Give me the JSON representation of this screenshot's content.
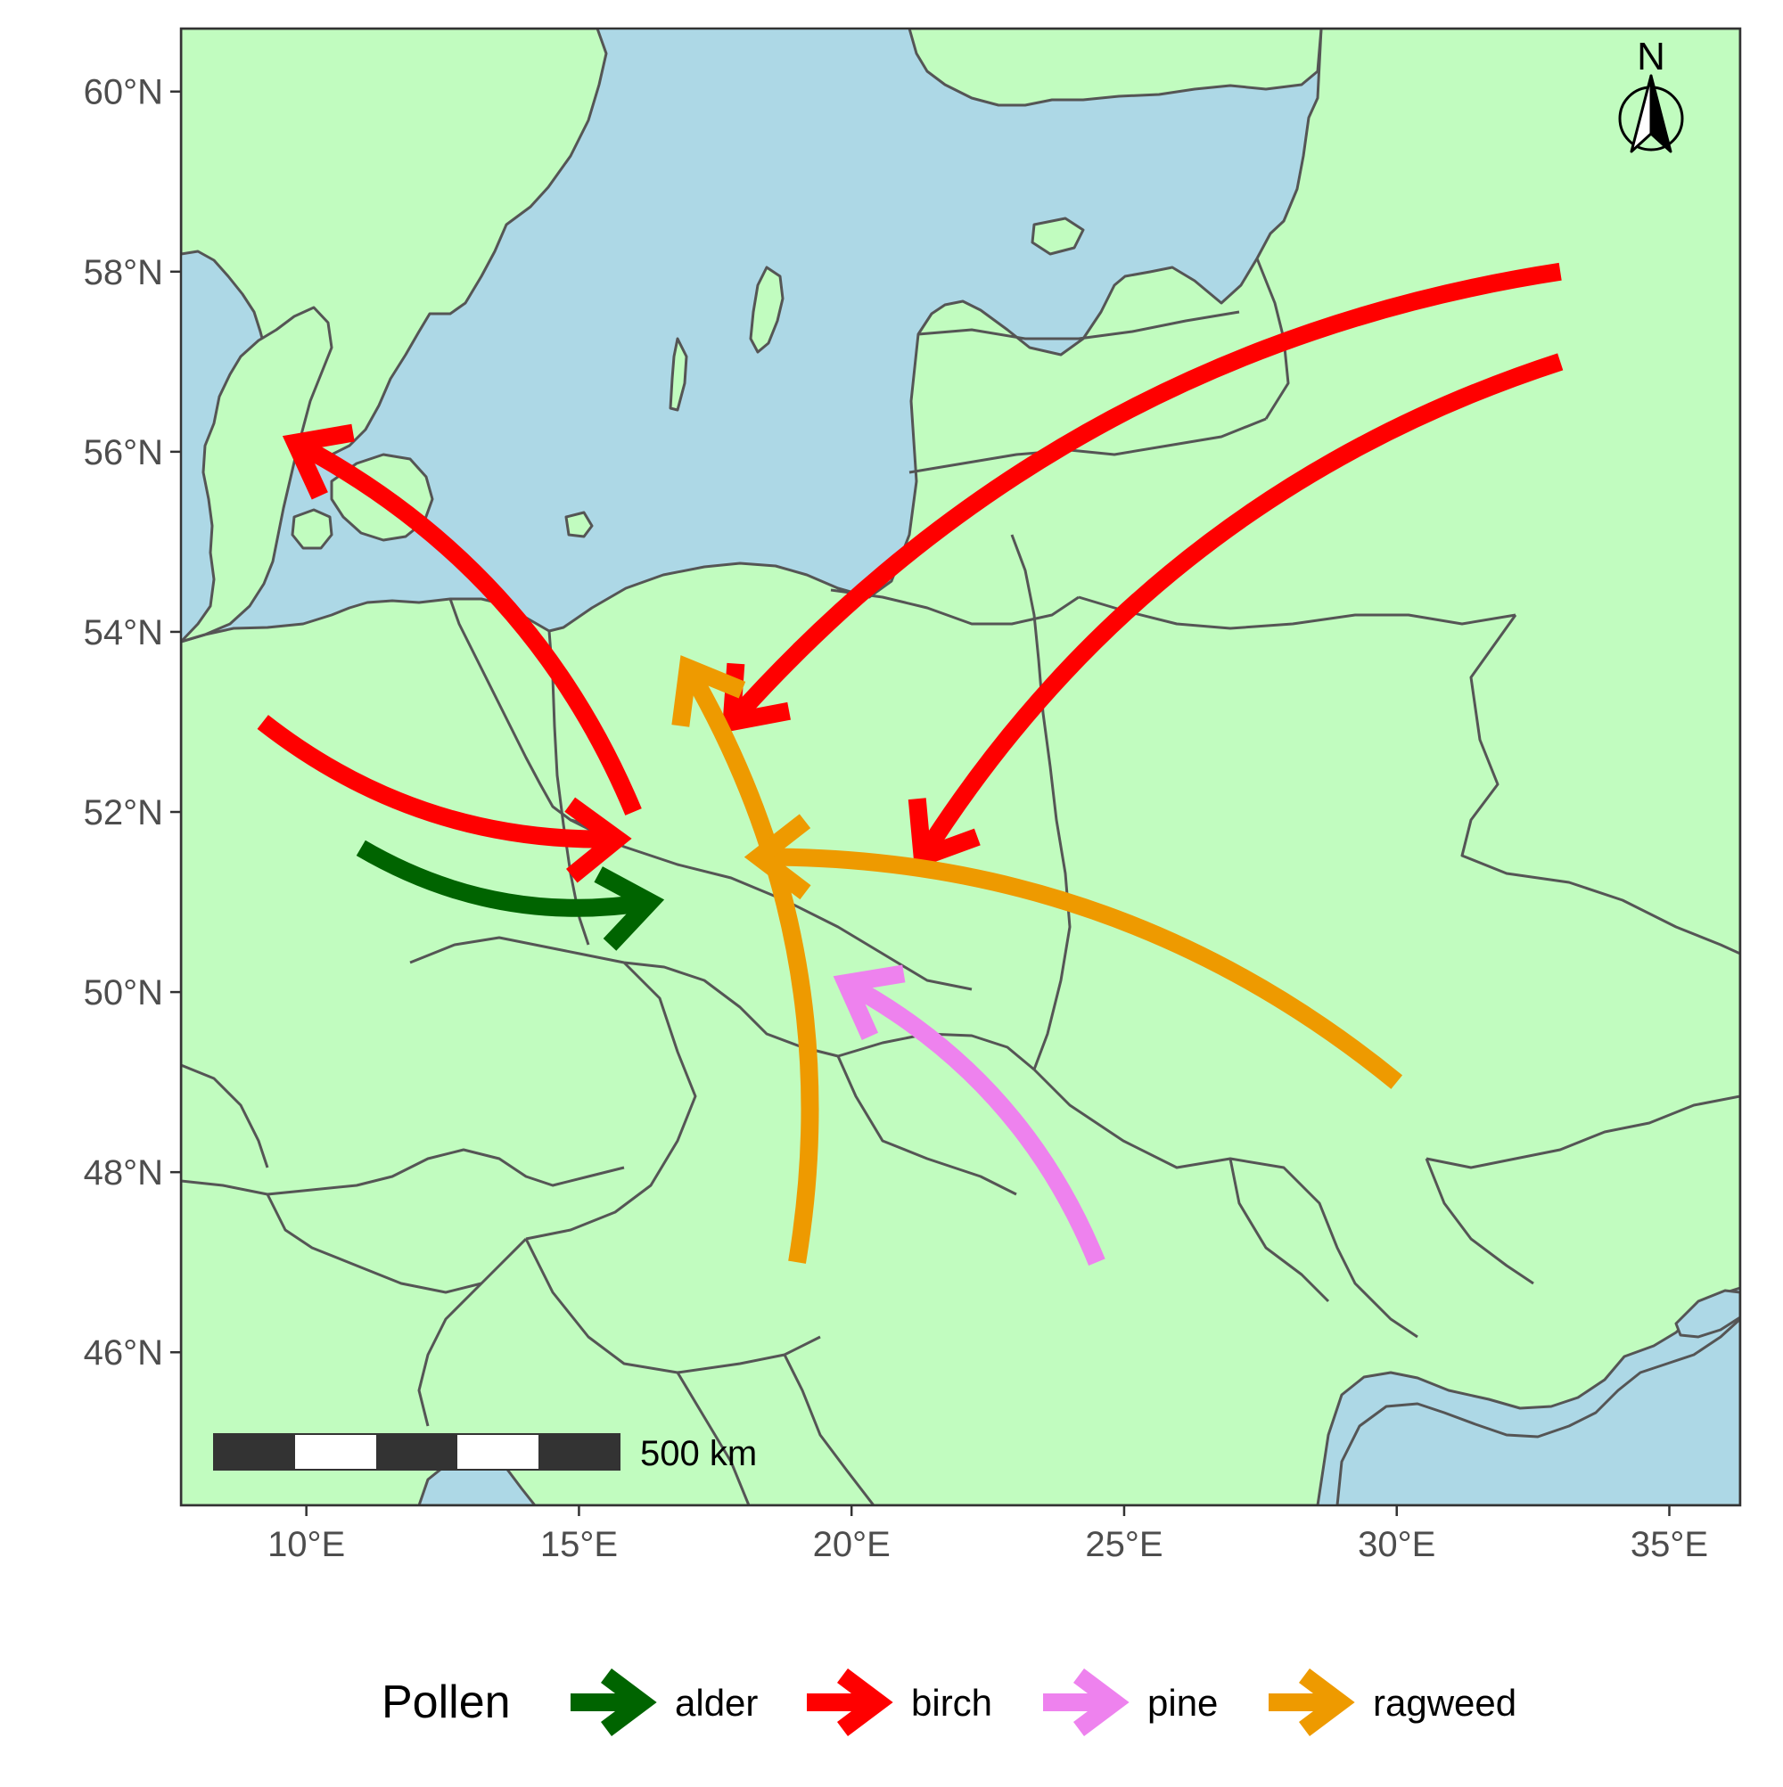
{
  "map": {
    "colors": {
      "land": "#c1fcbf",
      "sea": "#add8e6",
      "border": "#555555",
      "frame": "#333333"
    },
    "extent": {
      "lon": [
        7.7,
        36.3
      ],
      "lat": [
        44.3,
        60.7
      ]
    }
  },
  "axes": {
    "x_ticks": [
      {
        "lon": 10,
        "label": "10°E"
      },
      {
        "lon": 15,
        "label": "15°E"
      },
      {
        "lon": 20,
        "label": "20°E"
      },
      {
        "lon": 25,
        "label": "25°E"
      },
      {
        "lon": 30,
        "label": "30°E"
      },
      {
        "lon": 35,
        "label": "35°E"
      }
    ],
    "y_ticks": [
      {
        "lat": 60,
        "label": "60°N"
      },
      {
        "lat": 58,
        "label": "58°N"
      },
      {
        "lat": 56,
        "label": "56°N"
      },
      {
        "lat": 54,
        "label": "54°N"
      },
      {
        "lat": 52,
        "label": "52°N"
      },
      {
        "lat": 50,
        "label": "50°N"
      },
      {
        "lat": 48,
        "label": "48°N"
      },
      {
        "lat": 46,
        "label": "46°N"
      }
    ]
  },
  "pollen_types": [
    {
      "name": "alder",
      "color": "#006400"
    },
    {
      "name": "birch",
      "color": "#ff0000"
    },
    {
      "name": "pine",
      "color": "#ee82ee"
    },
    {
      "name": "ragweed",
      "color": "#ee9a00"
    }
  ],
  "arrows": [
    {
      "pollen": "birch",
      "from": [
        33.0,
        58.0
      ],
      "to": [
        17.8,
        53.0
      ]
    },
    {
      "pollen": "birch",
      "from": [
        33.0,
        57.0
      ],
      "to": [
        21.3,
        51.5
      ]
    },
    {
      "pollen": "birch",
      "from": [
        16.0,
        52.0
      ],
      "to": [
        9.8,
        56.1
      ]
    },
    {
      "pollen": "birch",
      "from": [
        9.2,
        53.0
      ],
      "to": [
        15.7,
        51.7
      ]
    },
    {
      "pollen": "alder",
      "from": [
        11.0,
        51.6
      ],
      "to": [
        16.3,
        51.0
      ]
    },
    {
      "pollen": "ragweed",
      "from": [
        19.0,
        47.0
      ],
      "to": [
        17.0,
        53.6
      ]
    },
    {
      "pollen": "ragweed",
      "from": [
        30.0,
        49.0
      ],
      "to": [
        18.3,
        51.5
      ]
    },
    {
      "pollen": "pine",
      "from": [
        24.5,
        47.0
      ],
      "to": [
        19.9,
        50.1
      ]
    }
  ],
  "legend": {
    "title": "Pollen"
  },
  "scale_bar": {
    "label": "500 km"
  },
  "north_arrow": {
    "label": "N"
  }
}
